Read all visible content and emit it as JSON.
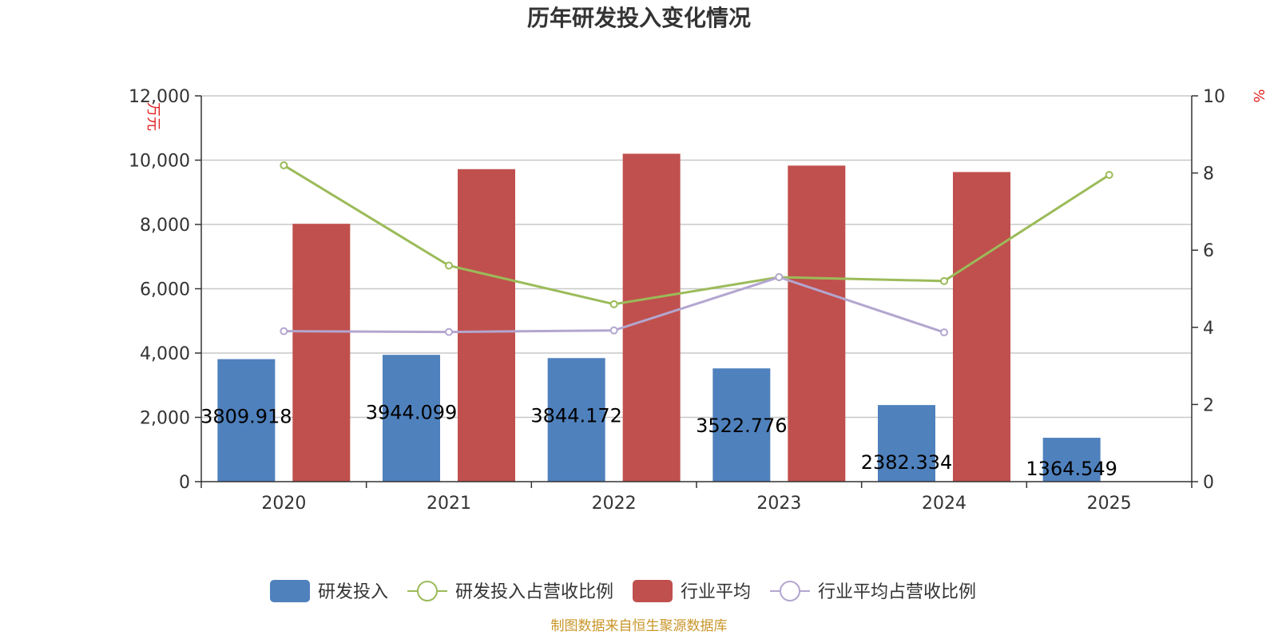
{
  "chart_data": {
    "type": "bar",
    "title": "历年研发投入变化情况",
    "categories": [
      "2020",
      "2021",
      "2022",
      "2023",
      "2024",
      "2025"
    ],
    "series": [
      {
        "name": "研发投入",
        "type": "bar",
        "axis": "left",
        "color": "#4f81bd",
        "values": [
          3809.918,
          3944.099,
          3844.172,
          3522.776,
          2382.334,
          1364.549
        ],
        "labels": [
          "3809.918",
          "3944.099",
          "3844.172",
          "3522.776",
          "2382.334",
          "1364.549"
        ]
      },
      {
        "name": "研发投入占营收比例",
        "type": "line",
        "axis": "right",
        "color": "#9bbb59",
        "values": [
          8.2,
          5.6,
          4.6,
          5.3,
          5.2,
          7.95
        ]
      },
      {
        "name": "行业平均",
        "type": "bar",
        "axis": "left",
        "color": "#c0504d",
        "values": [
          8020,
          9720,
          10200,
          9830,
          9630,
          null
        ]
      },
      {
        "name": "行业平均占营收比例",
        "type": "line",
        "axis": "right",
        "color": "#b3a6cf",
        "values": [
          3.9,
          3.88,
          3.92,
          5.3,
          3.87,
          null
        ]
      }
    ],
    "left_axis": {
      "unit": "万元",
      "ylim": [
        0,
        12000
      ],
      "ticks": [
        "0",
        "2,000",
        "4,000",
        "6,000",
        "8,000",
        "10,000",
        "12,000"
      ]
    },
    "right_axis": {
      "unit": "%",
      "ylim": [
        0,
        10
      ],
      "ticks": [
        "0",
        "2",
        "4",
        "6",
        "8",
        "10"
      ]
    },
    "grid": true,
    "legend_position": "bottom"
  },
  "source": "制图数据来自恒生聚源数据库"
}
